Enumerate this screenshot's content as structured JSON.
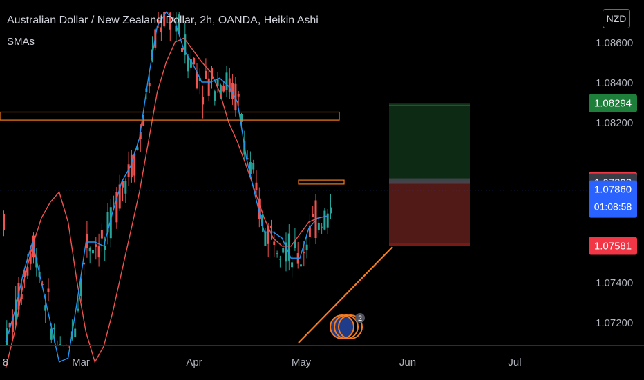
{
  "header": {
    "symbol_title": "Australian Dollar / New Zealand Dollar, 2h, OANDA, Heikin Ashi",
    "indicator_label": "SMAs",
    "currency": "NZD"
  },
  "colors": {
    "background": "#000000",
    "bull": "#26a69a",
    "bear": "#ef5350",
    "sma_fast": "#ef5350",
    "sma_slow": "#2196f3",
    "zone": "#f57c20",
    "target_zone": "#0d2a14",
    "stop_zone": "#521a16",
    "axis_text": "#b2b5be"
  },
  "chart_data": {
    "type": "candlestick",
    "title": "Australian Dollar / New Zealand Dollar, 2h, OANDA, Heikin Ashi",
    "y_axis": {
      "ticks": [
        "1.07200",
        "1.07400",
        "1.08200",
        "1.08400",
        "1.08600"
      ],
      "range": [
        1.0707,
        1.0875
      ]
    },
    "x_axis": {
      "ticks": [
        "8",
        "Mar",
        "Apr",
        "May",
        "Jun",
        "Jul"
      ]
    },
    "price_labels": [
      {
        "id": "target",
        "value": "1.08294",
        "color": "#1e7f3b",
        "text_color": "#ffffff"
      },
      {
        "id": "entry",
        "value": "1.07905",
        "color": "#f23645",
        "text_color": "#ffffff"
      },
      {
        "id": "level",
        "value": "1.07898",
        "color": "#3a3d46",
        "text_color": "#ffffff"
      },
      {
        "id": "last",
        "value": "1.07860",
        "countdown": "01:08:58",
        "color": "#2962ff",
        "text_color": "#ffffff"
      },
      {
        "id": "stop",
        "value": "1.07581",
        "color": "#f23645",
        "text_color": "#ffffff"
      }
    ],
    "sma_fast": [
      [
        1,
        1.0697
      ],
      [
        4,
        1.0715
      ],
      [
        7,
        1.074
      ],
      [
        10,
        1.0758
      ],
      [
        13,
        1.0772
      ],
      [
        16,
        1.078
      ],
      [
        19,
        1.0785
      ],
      [
        22,
        1.077
      ],
      [
        25,
        1.074
      ],
      [
        28,
        1.0715
      ],
      [
        31,
        1.07
      ],
      [
        34,
        1.0708
      ],
      [
        37,
        1.0725
      ],
      [
        40,
        1.0745
      ],
      [
        43,
        1.0765
      ],
      [
        46,
        1.0785
      ],
      [
        49,
        1.081
      ],
      [
        52,
        1.0835
      ],
      [
        55,
        1.085
      ],
      [
        58,
        1.086
      ],
      [
        61,
        1.0862
      ],
      [
        64,
        1.0856
      ],
      [
        67,
        1.085
      ],
      [
        70,
        1.0845
      ],
      [
        73,
        1.0835
      ],
      [
        76,
        1.082
      ],
      [
        79,
        1.081
      ],
      [
        82,
        1.0798
      ],
      [
        85,
        1.0785
      ],
      [
        88,
        1.0772
      ],
      [
        91,
        1.0762
      ],
      [
        94,
        1.0758
      ],
      [
        97,
        1.0758
      ],
      [
        100,
        1.0764
      ],
      [
        103,
        1.077
      ],
      [
        106,
        1.0772
      ],
      [
        109,
        1.0773
      ]
    ],
    "sma_slow": [
      [
        1,
        1.071
      ],
      [
        4,
        1.0725
      ],
      [
        7,
        1.0745
      ],
      [
        10,
        1.076
      ],
      [
        13,
        1.074
      ],
      [
        16,
        1.072
      ],
      [
        19,
        1.07
      ],
      [
        22,
        1.0702
      ],
      [
        25,
        1.073
      ],
      [
        28,
        1.076
      ],
      [
        31,
        1.076
      ],
      [
        34,
        1.0758
      ],
      [
        37,
        1.0775
      ],
      [
        40,
        1.079
      ],
      [
        43,
        1.0798
      ],
      [
        46,
        1.0812
      ],
      [
        49,
        1.0842
      ],
      [
        52,
        1.0868
      ],
      [
        55,
        1.0875
      ],
      [
        58,
        1.087
      ],
      [
        61,
        1.0856
      ],
      [
        64,
        1.0849
      ],
      [
        67,
        1.084
      ],
      [
        70,
        1.084
      ],
      [
        73,
        1.0842
      ],
      [
        76,
        1.0838
      ],
      [
        79,
        1.083
      ],
      [
        82,
        1.0802
      ],
      [
        85,
        1.0783
      ],
      [
        88,
        1.0765
      ],
      [
        91,
        1.0765
      ],
      [
        94,
        1.0762
      ],
      [
        97,
        1.0752
      ],
      [
        100,
        1.0752
      ],
      [
        103,
        1.0767
      ],
      [
        106,
        1.0772
      ],
      [
        109,
        1.0773
      ]
    ],
    "annotations": {
      "resistance_zone": {
        "low": 1.0821,
        "high": 1.0825
      },
      "entry_zone": {
        "low": 1.0789,
        "high": 1.0791
      },
      "long_position": {
        "target": 1.08294,
        "entry": 1.07905,
        "stop": 1.07581
      },
      "trendline": {
        "from": 1.07,
        "to": 1.0762
      },
      "event_badge_count": "2"
    }
  }
}
